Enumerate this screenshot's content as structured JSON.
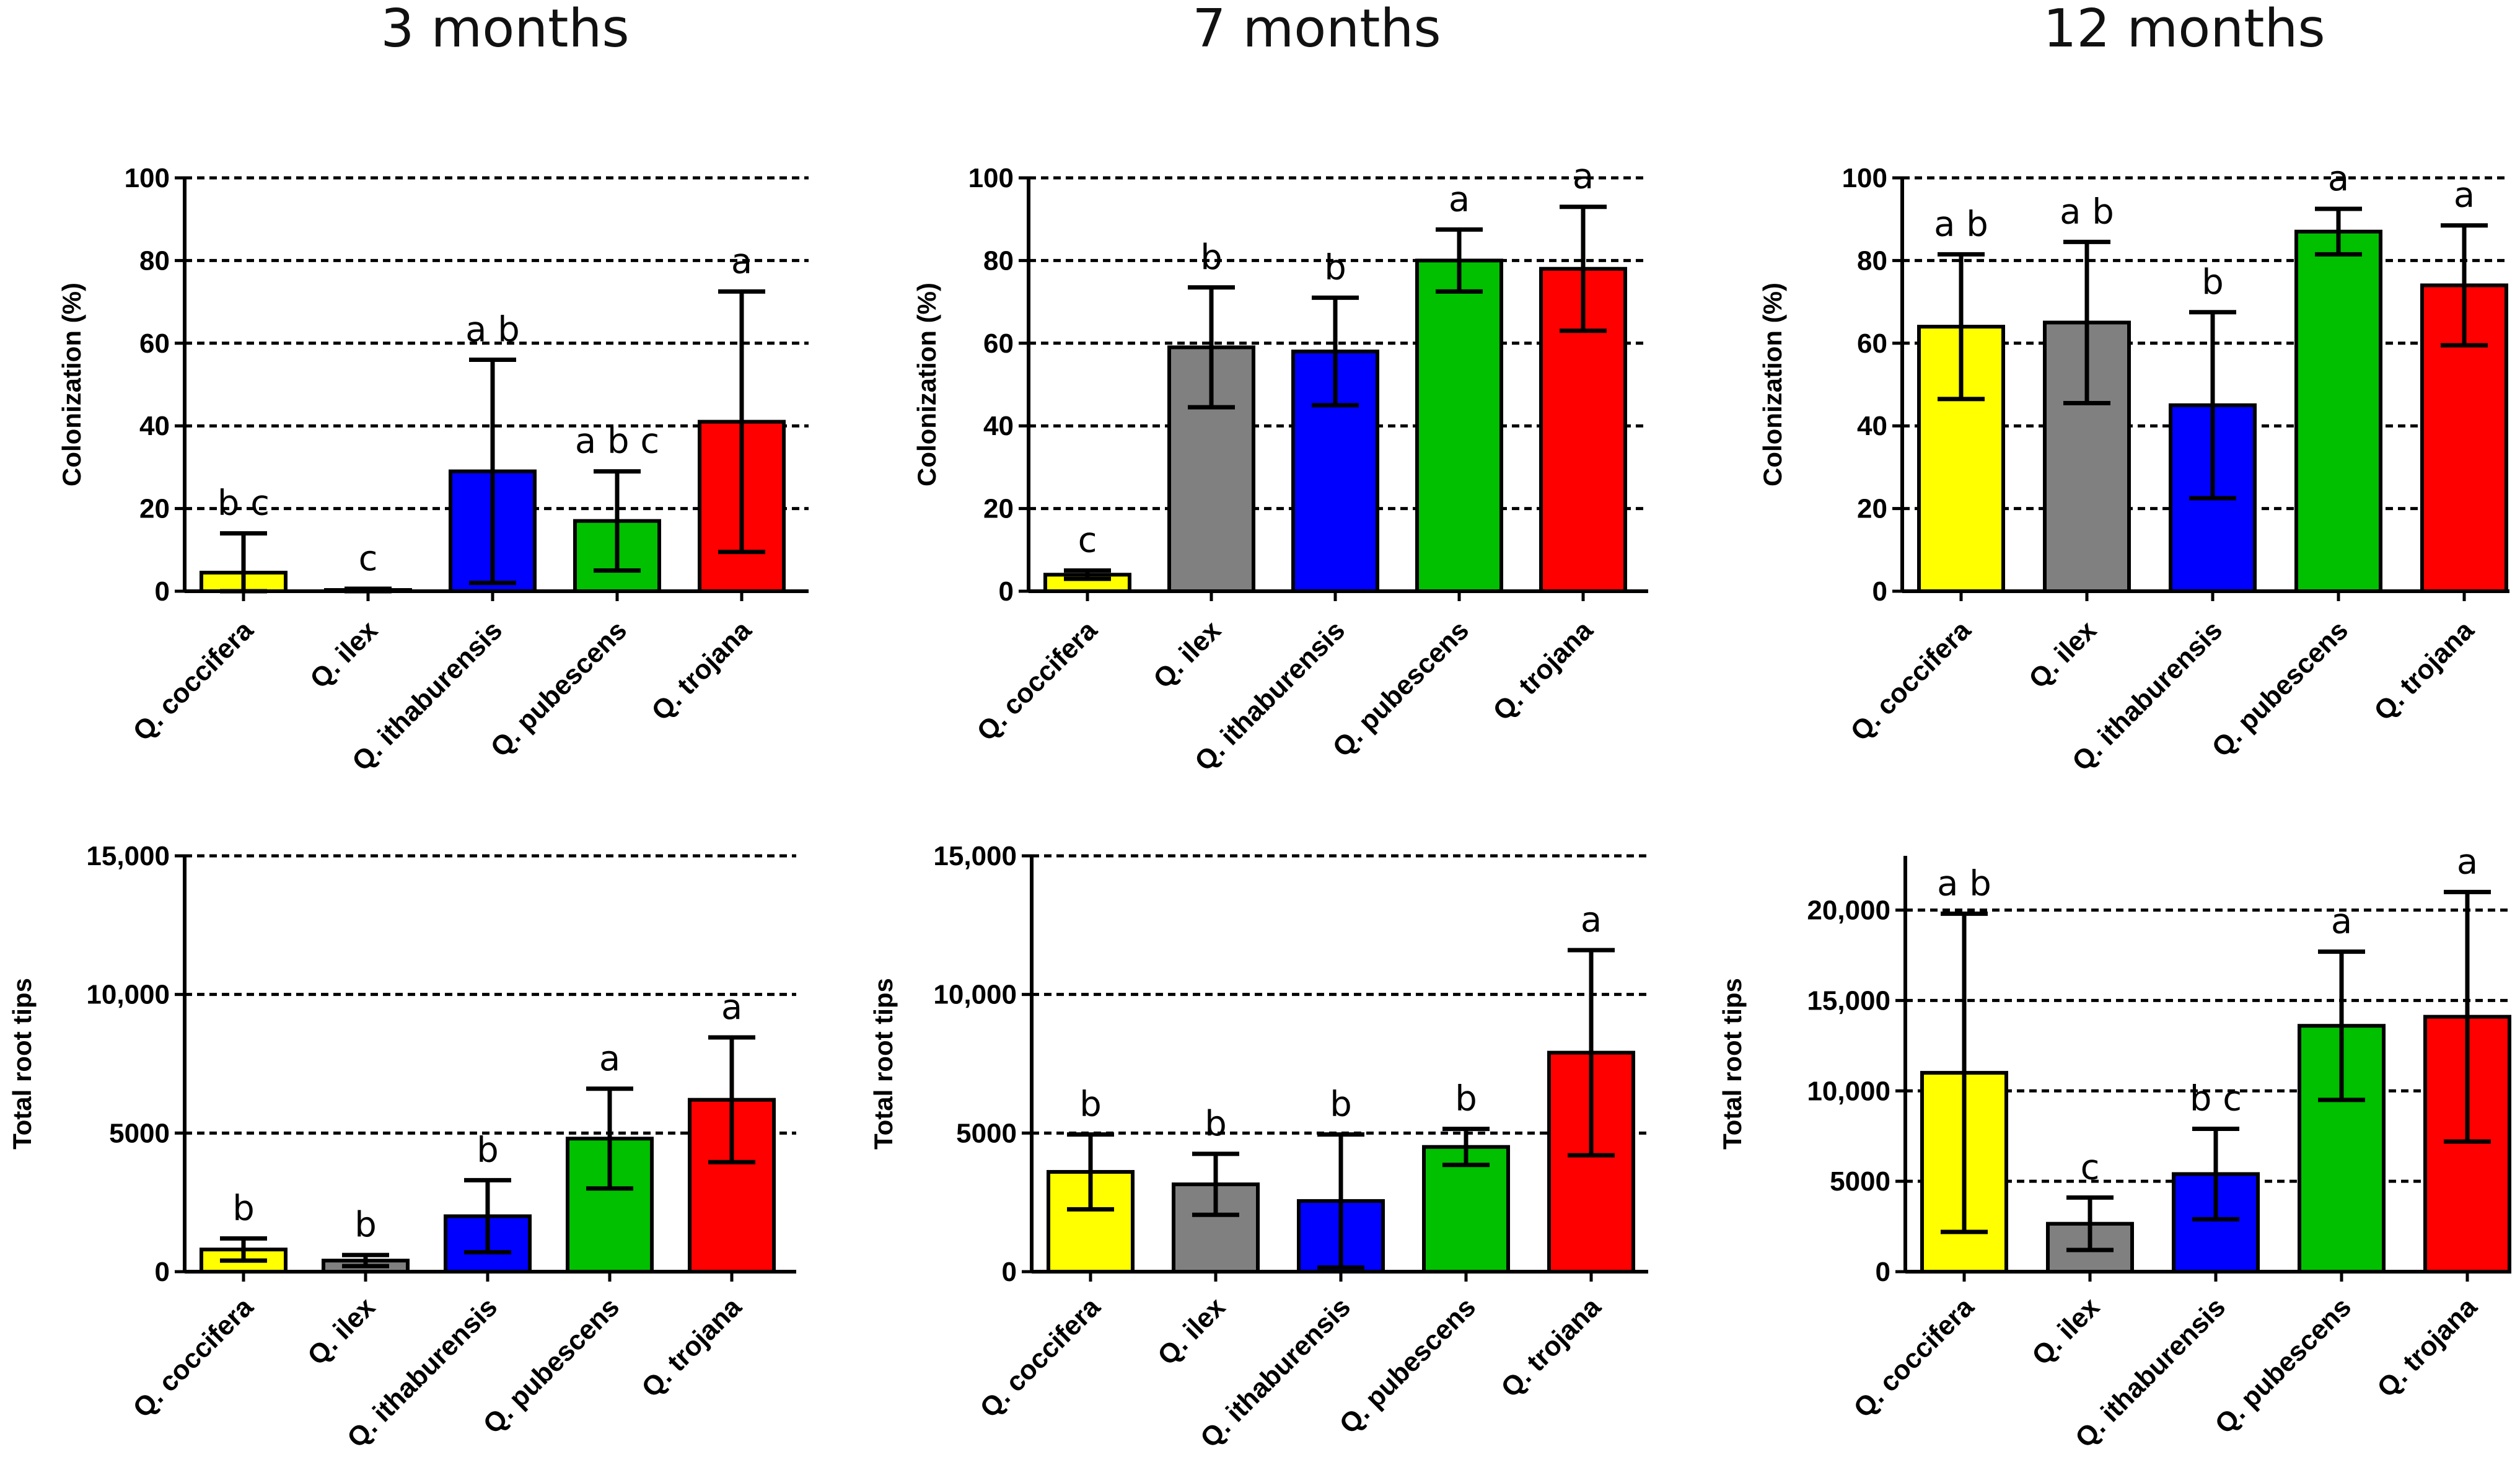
{
  "columns": [
    "3 months",
    "7 months",
    "12 months"
  ],
  "colors": {
    "Q. coccifera": "#ffff00",
    "Q. ilex": "#808080",
    "Q. ithaburensis": "#0000ff",
    "Q. pubescens": "#00c000",
    "Q. trojana": "#ff0000"
  },
  "chart_data": [
    {
      "type": "bar",
      "column": "3 months",
      "row": "top",
      "ylabel": "Colonization (%)",
      "categories": [
        "Q. coccifera",
        "Q. ilex",
        "Q. ithaburensis",
        "Q. pubescens",
        "Q. trojana"
      ],
      "values": [
        4.5,
        0.3,
        29,
        17,
        41
      ],
      "error": [
        9.5,
        0.3,
        27,
        12,
        31.5
      ],
      "letters": [
        "b c",
        "c",
        "a b",
        "a b c",
        "a"
      ],
      "ylim": [
        0,
        100
      ],
      "ticks": [
        0,
        20,
        40,
        60,
        80,
        100
      ],
      "tick_labels": [
        "0",
        "20",
        "40",
        "60",
        "80",
        "100"
      ]
    },
    {
      "type": "bar",
      "column": "7 months",
      "row": "top",
      "ylabel": "Colonization (%)",
      "categories": [
        "Q. coccifera",
        "Q. ilex",
        "Q. ithaburensis",
        "Q. pubescens",
        "Q. trojana"
      ],
      "values": [
        4,
        59,
        58,
        80,
        78
      ],
      "error": [
        1,
        14.5,
        13,
        7.5,
        15
      ],
      "letters": [
        "c",
        "b",
        "b",
        "a",
        "a"
      ],
      "ylim": [
        0,
        100
      ],
      "ticks": [
        0,
        20,
        40,
        60,
        80,
        100
      ],
      "tick_labels": [
        "0",
        "20",
        "40",
        "60",
        "80",
        "100"
      ]
    },
    {
      "type": "bar",
      "column": "12 months",
      "row": "top",
      "ylabel": "Colonization (%)",
      "categories": [
        "Q. coccifera",
        "Q. ilex",
        "Q. ithaburensis",
        "Q. pubescens",
        "Q. trojana"
      ],
      "values": [
        64,
        65,
        45,
        87,
        74
      ],
      "error": [
        17.5,
        19.5,
        22.5,
        5.5,
        14.5
      ],
      "letters": [
        "a b",
        "a b",
        "b",
        "a",
        "a"
      ],
      "ylim": [
        0,
        100
      ],
      "ticks": [
        0,
        20,
        40,
        60,
        80,
        100
      ],
      "tick_labels": [
        "0",
        "20",
        "40",
        "60",
        "80",
        "100"
      ]
    },
    {
      "type": "bar",
      "column": "3 months",
      "row": "bottom",
      "ylabel": "Total root tips",
      "categories": [
        "Q. coccifera",
        "Q. ilex",
        "Q. ithaburensis",
        "Q. pubescens",
        "Q. trojana"
      ],
      "values": [
        800,
        400,
        2000,
        4800,
        6200
      ],
      "error": [
        400,
        200,
        1300,
        1800,
        2250
      ],
      "letters": [
        "b",
        "b",
        "b",
        "a",
        "a"
      ],
      "ylim": [
        0,
        15000
      ],
      "ticks": [
        0,
        5000,
        10000,
        15000
      ],
      "tick_labels": [
        "0",
        "5000",
        "10,000",
        "15,000"
      ]
    },
    {
      "type": "bar",
      "column": "7 months",
      "row": "bottom",
      "ylabel": "Total root tips",
      "categories": [
        "Q. coccifera",
        "Q. ilex",
        "Q. ithaburensis",
        "Q. pubescens",
        "Q. trojana"
      ],
      "values": [
        3600,
        3150,
        2550,
        4500,
        7900
      ],
      "error": [
        1350,
        1100,
        2400,
        650,
        3700
      ],
      "letters": [
        "b",
        "b",
        "b",
        "b",
        "a"
      ],
      "ylim": [
        0,
        15000
      ],
      "ticks": [
        0,
        5000,
        10000,
        15000
      ],
      "tick_labels": [
        "0",
        "5000",
        "10,000",
        "15,000"
      ]
    },
    {
      "type": "bar",
      "column": "12 months",
      "row": "bottom",
      "ylabel": "Total root tips",
      "categories": [
        "Q. coccifera",
        "Q. ilex",
        "Q. ithaburensis",
        "Q. pubescens",
        "Q. trojana"
      ],
      "values": [
        11000,
        2650,
        5400,
        13600,
        14100
      ],
      "error": [
        8800,
        1450,
        2500,
        4100,
        6900
      ],
      "letters": [
        "a b",
        "c",
        "b c",
        "a",
        "a"
      ],
      "ylim": [
        0,
        23000
      ],
      "ticks": [
        0,
        5000,
        10000,
        15000,
        20000
      ],
      "tick_labels": [
        "0",
        "5000",
        "10,000",
        "15,000",
        "20,000"
      ]
    }
  ]
}
